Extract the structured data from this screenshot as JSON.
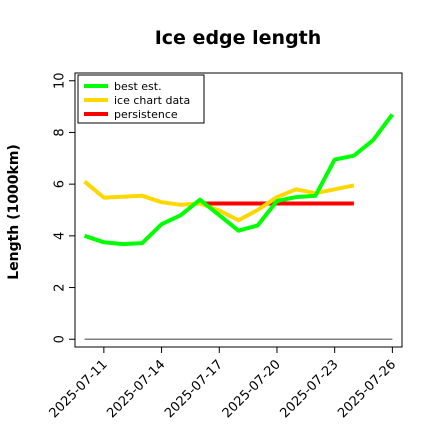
{
  "chart_data": {
    "type": "line",
    "title": "Ice edge length",
    "xlabel": "",
    "ylabel": "Length (1000km)",
    "ylim": [
      -0.3,
      10.3
    ],
    "yticks": [
      0,
      2,
      4,
      6,
      8,
      10
    ],
    "xticks": [
      "2025-07-11",
      "2025-07-14",
      "2025-07-17",
      "2025-07-20",
      "2025-07-23",
      "2025-07-26"
    ],
    "grid": false,
    "legend_position": "top-left",
    "series": [
      {
        "name": "best est.",
        "color": "#00ff00",
        "x": [
          "2025-07-10",
          "2025-07-11",
          "2025-07-12",
          "2025-07-13",
          "2025-07-14",
          "2025-07-15",
          "2025-07-16",
          "2025-07-17",
          "2025-07-18",
          "2025-07-19",
          "2025-07-20",
          "2025-07-21",
          "2025-07-22",
          "2025-07-23",
          "2025-07-24",
          "2025-07-25",
          "2025-07-26"
        ],
        "y": [
          4.0,
          3.75,
          3.68,
          3.72,
          4.45,
          4.8,
          5.4,
          4.8,
          4.2,
          4.4,
          5.35,
          5.5,
          5.55,
          6.95,
          7.1,
          7.7,
          8.7
        ]
      },
      {
        "name": "ice chart data",
        "color": "#ffd700",
        "x": [
          "2025-07-10",
          "2025-07-11",
          "2025-07-13",
          "2025-07-14",
          "2025-07-15",
          "2025-07-16",
          "2025-07-17",
          "2025-07-18",
          "2025-07-19",
          "2025-07-20",
          "2025-07-21",
          "2025-07-22",
          "2025-07-23",
          "2025-07-24"
        ],
        "y": [
          6.1,
          5.48,
          5.55,
          5.3,
          5.2,
          5.25,
          4.98,
          4.6,
          5.0,
          5.5,
          5.8,
          5.65,
          5.8,
          5.95
        ]
      },
      {
        "name": "persistence",
        "color": "#ff0000",
        "x": [
          "2025-07-16",
          "2025-07-24"
        ],
        "y": [
          5.25,
          5.25
        ]
      },
      {
        "name": "",
        "color": "#808080",
        "x": [
          "2025-07-10",
          "2025-07-26"
        ],
        "y": [
          0,
          0
        ]
      }
    ]
  }
}
